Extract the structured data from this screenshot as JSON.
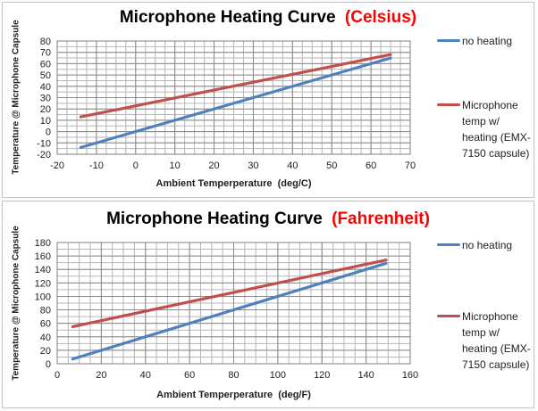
{
  "colors": {
    "title_text": "#000000",
    "title_accent": "#FF0000",
    "grid_minor": "#b6b6b6",
    "grid_major": "#8a8a8a",
    "plot_border": "#7f7f7f",
    "tick_text": "#1f1f1f"
  },
  "chart_data": [
    {
      "type": "line",
      "title": "Microphone Heating Curve",
      "title_unit": "(Celsius)",
      "xlabel": "Ambient Temperperature  (deg/C)",
      "ylabel": "Temperature @ Microphone Capsule",
      "xlim": [
        -20,
        70
      ],
      "ylim": [
        -20,
        80
      ],
      "x_ticks": [
        -20,
        -10,
        0,
        10,
        20,
        30,
        40,
        50,
        60,
        70
      ],
      "y_ticks": [
        -20,
        -10,
        0,
        10,
        20,
        30,
        40,
        50,
        60,
        70,
        80
      ],
      "x_minor_step": 2.5,
      "y_minor_step": 5,
      "grid": true,
      "legend_position": "right",
      "series": [
        {
          "name": "no heating",
          "color": "#4F81BD",
          "points": [
            [
              -14,
              -14
            ],
            [
              65,
              65
            ]
          ]
        },
        {
          "name": "Microphone temp w/ heating (EMX-7150 capsule)",
          "color": "#C0504D",
          "points": [
            [
              -14,
              13
            ],
            [
              65,
              68
            ]
          ]
        }
      ]
    },
    {
      "type": "line",
      "title": "Microphone Heating Curve",
      "title_unit": "(Fahrenheit)",
      "xlabel": "Ambient Temperperature  (deg/F)",
      "ylabel": "Temperature @ Microphone Capsule",
      "xlim": [
        0,
        160
      ],
      "ylim": [
        0,
        180
      ],
      "x_ticks": [
        0,
        20,
        40,
        60,
        80,
        100,
        120,
        140,
        160
      ],
      "y_ticks": [
        0,
        20,
        40,
        60,
        80,
        100,
        120,
        140,
        160,
        180
      ],
      "x_minor_step": 5,
      "y_minor_step": 10,
      "grid": true,
      "legend_position": "right",
      "series": [
        {
          "name": "no heating",
          "color": "#4F81BD",
          "points": [
            [
              7,
              7
            ],
            [
              149,
              149
            ]
          ]
        },
        {
          "name": "Microphone temp w/ heating (EMX-7150 capsule)",
          "color": "#C0504D",
          "points": [
            [
              7,
              55
            ],
            [
              149,
              154
            ]
          ]
        }
      ]
    }
  ]
}
